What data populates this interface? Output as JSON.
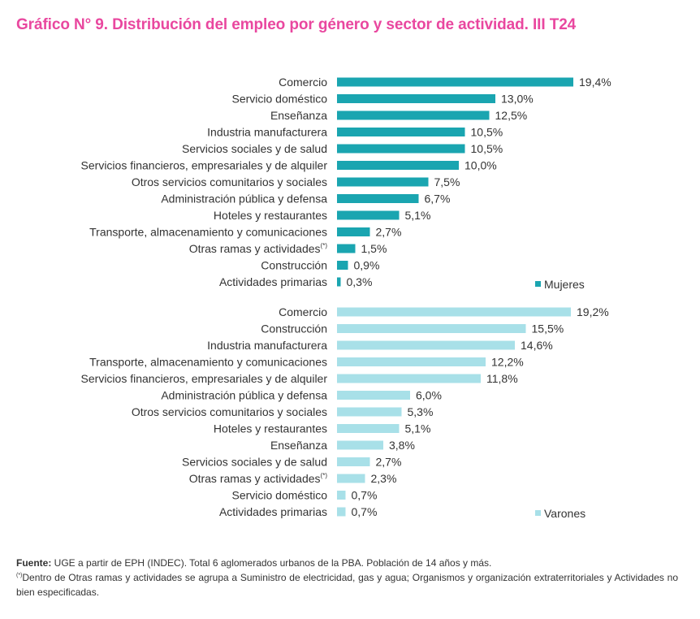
{
  "title": "Gráfico N° 9. Distribución del empleo por género y sector de actividad. III T24",
  "colors": {
    "title": "#e9479f",
    "mujeres": "#1aa5b0",
    "varones": "#a8e0e8"
  },
  "chart_data": [
    {
      "type": "bar",
      "orientation": "horizontal",
      "series_name": "Mujeres",
      "categories": [
        "Comercio",
        "Servicio doméstico",
        "Enseñanza",
        "Industria manufacturera",
        "Servicios sociales y de salud",
        "Servicios financieros, empresariales y de alquiler",
        "Otros servicios comunitarios y sociales",
        "Administración pública y defensa",
        "Hoteles y restaurantes",
        "Transporte, almacenamiento y comunicaciones",
        "Otras ramas y actividades(*)",
        "Construcción",
        "Actividades primarias"
      ],
      "values": [
        19.4,
        13.0,
        12.5,
        10.5,
        10.5,
        10.0,
        7.5,
        6.7,
        5.1,
        2.7,
        1.5,
        0.9,
        0.3
      ],
      "labels": [
        "19,4%",
        "13,0%",
        "12,5%",
        "10,5%",
        "10,5%",
        "10,0%",
        "7,5%",
        "6,7%",
        "5,1%",
        "2,7%",
        "1,5%",
        "0,9%",
        "0,3%"
      ],
      "unit": "%"
    },
    {
      "type": "bar",
      "orientation": "horizontal",
      "series_name": "Varones",
      "categories": [
        "Comercio",
        "Construcción",
        "Industria manufacturera",
        "Transporte, almacenamiento y comunicaciones",
        "Servicios financieros, empresariales y de alquiler",
        "Administración pública y defensa",
        "Otros servicios comunitarios y sociales",
        "Hoteles y restaurantes",
        "Enseñanza",
        "Servicios sociales y de salud",
        "Otras ramas y actividades(*)",
        "Servicio doméstico",
        "Actividades primarias"
      ],
      "values": [
        19.2,
        15.5,
        14.6,
        12.2,
        11.8,
        6.0,
        5.3,
        5.1,
        3.8,
        2.7,
        2.3,
        0.7,
        0.7
      ],
      "labels": [
        "19,2%",
        "15,5%",
        "14,6%",
        "12,2%",
        "11,8%",
        "6,0%",
        "5,3%",
        "5,1%",
        "3,8%",
        "2,7%",
        "2,3%",
        "0,7%",
        "0,7%"
      ],
      "unit": "%"
    }
  ],
  "footnote": {
    "source_label": "Fuente:",
    "source_text": " UGE a partir de EPH (INDEC). Total 6 aglomerados urbanos de la PBA. Población de 14 años y más.",
    "note_marker": "(*)",
    "note_text": "Dentro de Otras ramas y actividades se agrupa a Suministro de electricidad, gas y agua; Organismos y organización extraterritoriales y Actividades no bien especificadas."
  }
}
